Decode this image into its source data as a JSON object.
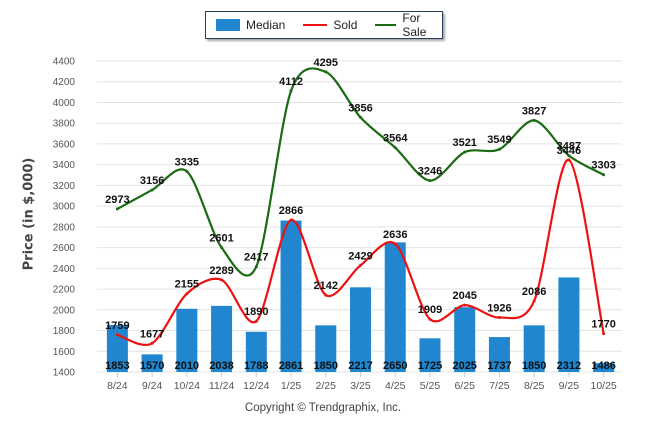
{
  "chart_data": {
    "type": "bar",
    "title": "",
    "xlabel": "",
    "ylabel": "Price (in $,000)",
    "ylim": [
      1400,
      4400
    ],
    "yticks": [
      1400,
      1600,
      1800,
      2000,
      2200,
      2400,
      2600,
      2800,
      3000,
      3200,
      3400,
      3600,
      3800,
      4000,
      4200,
      4400
    ],
    "grid": true,
    "legend_position": "top-center",
    "categories": [
      "8/24",
      "9/24",
      "10/24",
      "11/24",
      "12/24",
      "1/25",
      "2/25",
      "3/25",
      "4/25",
      "5/25",
      "6/25",
      "7/25",
      "8/25",
      "9/25",
      "10/25"
    ],
    "series": [
      {
        "name": "Median",
        "type": "bar",
        "color": "#1f86cf",
        "values": [
          1853,
          1570,
          2010,
          2038,
          1788,
          2861,
          1850,
          2217,
          2650,
          1725,
          2025,
          1737,
          1850,
          2312,
          1486
        ]
      },
      {
        "name": "Sold",
        "type": "line",
        "color": "#ee1111",
        "values": [
          1759,
          1677,
          2155,
          2289,
          1890,
          2866,
          2142,
          2429,
          2636,
          1909,
          2045,
          1926,
          2086,
          3446,
          1770
        ]
      },
      {
        "name": "For Sale",
        "type": "line",
        "color": "#1a6b12",
        "values": [
          2973,
          3156,
          3335,
          2601,
          2417,
          4112,
          4295,
          3856,
          3564,
          3246,
          3521,
          3549,
          3827,
          3487,
          3303
        ]
      }
    ]
  },
  "legend": {
    "items": [
      {
        "label": "Median",
        "color": "#1f86cf"
      },
      {
        "label": "Sold",
        "color": "#ee1111"
      },
      {
        "label": "For Sale",
        "color": "#1a6b12"
      }
    ]
  },
  "footer": {
    "copyright": "Copyright © Trendgraphix, Inc."
  }
}
